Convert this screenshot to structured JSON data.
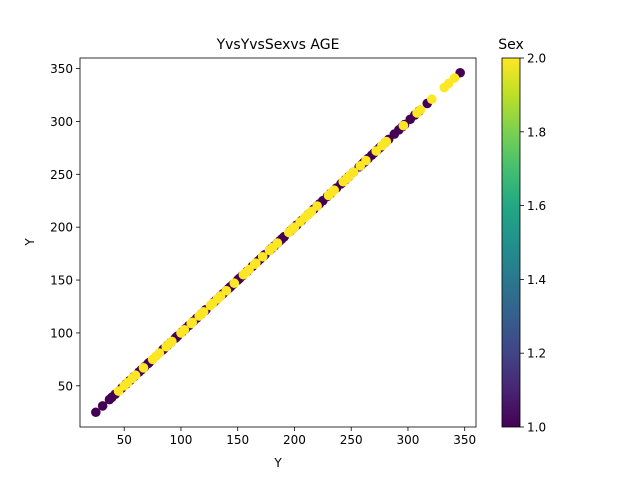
{
  "chart_data": {
    "type": "scatter",
    "title": "YvsYvsSexvs AGE",
    "xlabel": "Y",
    "ylabel": "Y",
    "xlim": [
      11.05,
      359.95
    ],
    "ylim": [
      11.05,
      359.95
    ],
    "xticks": [
      50,
      100,
      150,
      200,
      250,
      300,
      350
    ],
    "yticks": [
      50,
      100,
      150,
      200,
      250,
      300,
      350
    ],
    "grid": false,
    "colorbar": {
      "label": "Sex",
      "range": [
        1.0,
        2.0
      ],
      "ticks": [
        "1.0",
        "1.2",
        "1.4",
        "1.6",
        "1.8",
        "2.0"
      ],
      "colormap": "viridis",
      "low_color": "#440154",
      "high_color": "#fde725"
    },
    "series": [
      {
        "sex": 1,
        "color": "#440154",
        "points": [
          [
            25,
            25
          ],
          [
            31,
            31
          ],
          [
            37,
            37
          ],
          [
            39,
            39
          ],
          [
            42,
            42
          ],
          [
            48,
            48
          ],
          [
            52,
            52
          ],
          [
            55,
            55
          ],
          [
            59,
            59
          ],
          [
            63,
            63
          ],
          [
            65,
            65
          ],
          [
            68,
            68
          ],
          [
            71,
            71
          ],
          [
            72,
            72
          ],
          [
            84,
            84
          ],
          [
            85,
            85
          ],
          [
            88,
            88
          ],
          [
            91,
            91
          ],
          [
            95,
            95
          ],
          [
            96,
            96
          ],
          [
            97,
            97
          ],
          [
            101,
            101
          ],
          [
            104,
            104
          ],
          [
            107,
            107
          ],
          [
            111,
            111
          ],
          [
            114,
            114
          ],
          [
            118,
            118
          ],
          [
            121,
            121
          ],
          [
            122,
            122
          ],
          [
            129,
            129
          ],
          [
            131,
            131
          ],
          [
            135,
            135
          ],
          [
            137,
            137
          ],
          [
            140,
            140
          ],
          [
            142,
            142
          ],
          [
            143,
            143
          ],
          [
            144,
            144
          ],
          [
            146,
            146
          ],
          [
            150,
            150
          ],
          [
            151,
            151
          ],
          [
            152,
            152
          ],
          [
            154,
            154
          ],
          [
            158,
            158
          ],
          [
            163,
            163
          ],
          [
            168,
            168
          ],
          [
            170,
            170
          ],
          [
            173,
            173
          ],
          [
            174,
            174
          ],
          [
            178,
            178
          ],
          [
            180,
            180
          ],
          [
            182,
            182
          ],
          [
            185,
            185
          ],
          [
            187,
            187
          ],
          [
            189,
            189
          ],
          [
            191,
            191
          ],
          [
            196,
            196
          ],
          [
            198,
            198
          ],
          [
            200,
            200
          ],
          [
            202,
            202
          ],
          [
            206,
            206
          ],
          [
            212,
            212
          ],
          [
            217,
            217
          ],
          [
            220,
            220
          ],
          [
            222,
            222
          ],
          [
            225,
            225
          ],
          [
            229,
            229
          ],
          [
            232,
            232
          ],
          [
            237,
            237
          ],
          [
            241,
            241
          ],
          [
            242,
            242
          ],
          [
            245,
            245
          ],
          [
            248,
            248
          ],
          [
            252,
            252
          ],
          [
            257,
            257
          ],
          [
            259,
            259
          ],
          [
            261,
            261
          ],
          [
            262,
            262
          ],
          [
            265,
            265
          ],
          [
            268,
            268
          ],
          [
            270,
            270
          ],
          [
            273,
            273
          ],
          [
            275,
            275
          ],
          [
            276,
            276
          ],
          [
            280,
            280
          ],
          [
            283,
            283
          ],
          [
            288,
            288
          ],
          [
            292,
            292
          ],
          [
            295,
            295
          ],
          [
            297,
            297
          ],
          [
            302,
            302
          ],
          [
            306,
            306
          ],
          [
            310,
            310
          ],
          [
            317,
            317
          ],
          [
            346,
            346
          ]
        ]
      },
      {
        "sex": 2,
        "color": "#fde725",
        "points": [
          [
            45,
            45
          ],
          [
            50,
            50
          ],
          [
            53,
            53
          ],
          [
            57,
            57
          ],
          [
            60,
            60
          ],
          [
            67,
            67
          ],
          [
            75,
            75
          ],
          [
            78,
            78
          ],
          [
            81,
            81
          ],
          [
            87,
            87
          ],
          [
            90,
            90
          ],
          [
            92,
            92
          ],
          [
            100,
            100
          ],
          [
            103,
            103
          ],
          [
            109,
            109
          ],
          [
            110,
            110
          ],
          [
            116,
            116
          ],
          [
            118,
            118
          ],
          [
            120,
            120
          ],
          [
            126,
            126
          ],
          [
            128,
            128
          ],
          [
            132,
            132
          ],
          [
            135,
            135
          ],
          [
            140,
            140
          ],
          [
            147,
            147
          ],
          [
            155,
            155
          ],
          [
            157,
            157
          ],
          [
            160,
            160
          ],
          [
            165,
            165
          ],
          [
            166,
            166
          ],
          [
            172,
            172
          ],
          [
            178,
            178
          ],
          [
            181,
            181
          ],
          [
            185,
            185
          ],
          [
            195,
            195
          ],
          [
            198,
            198
          ],
          [
            200,
            200
          ],
          [
            205,
            205
          ],
          [
            209,
            209
          ],
          [
            212,
            212
          ],
          [
            214,
            214
          ],
          [
            215,
            215
          ],
          [
            220,
            220
          ],
          [
            230,
            230
          ],
          [
            233,
            233
          ],
          [
            235,
            235
          ],
          [
            243,
            243
          ],
          [
            246,
            246
          ],
          [
            249,
            249
          ],
          [
            252,
            252
          ],
          [
            258,
            258
          ],
          [
            263,
            263
          ],
          [
            272,
            272
          ],
          [
            277,
            277
          ],
          [
            280,
            280
          ],
          [
            281,
            281
          ],
          [
            296,
            296
          ],
          [
            308,
            308
          ],
          [
            311,
            311
          ],
          [
            321,
            321
          ],
          [
            332,
            332
          ],
          [
            336,
            336
          ],
          [
            341,
            341
          ]
        ]
      }
    ]
  }
}
